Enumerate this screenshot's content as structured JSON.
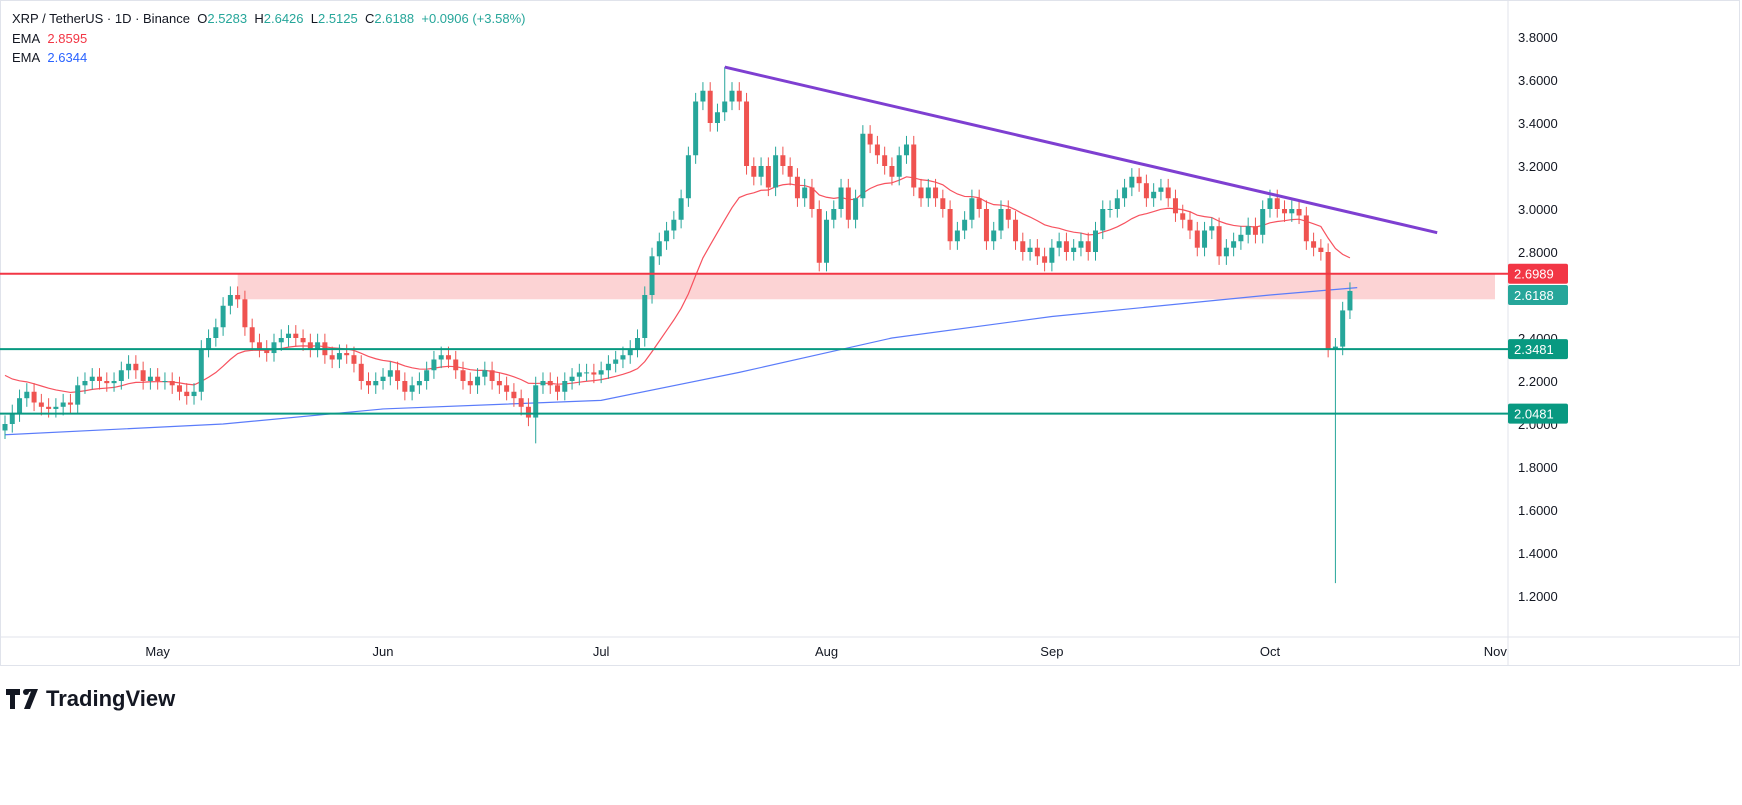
{
  "header": {
    "symbol": "XRP / TetherUS · 1D · Binance",
    "o_label": "O",
    "o": "2.5283",
    "h_label": "H",
    "h": "2.6426",
    "l_label": "L",
    "l": "2.5125",
    "c_label": "C",
    "c": "2.6188",
    "change": "+0.0906 (+3.58%)"
  },
  "ema_fast": {
    "label": "EMA",
    "value": "2.8595",
    "color": "#f7525f"
  },
  "ema_slow": {
    "label": "EMA",
    "value": "2.6344",
    "color": "#5b7cfa"
  },
  "brand": "TradingView",
  "chart_data": {
    "type": "candlestick",
    "start_date": "2025-04-10",
    "price_ticks": [
      "3.8000",
      "3.6000",
      "3.4000",
      "3.2000",
      "3.0000",
      "2.8000",
      "2.4000",
      "2.2000",
      "2.0000",
      "1.8000",
      "1.6000",
      "1.4000",
      "1.2000"
    ],
    "ylim": [
      1.0,
      3.9
    ],
    "time_labels": [
      {
        "label": "May",
        "date": "2025-05-01"
      },
      {
        "label": "Jun",
        "date": "2025-06-01"
      },
      {
        "label": "Jul",
        "date": "2025-07-01"
      },
      {
        "label": "Aug",
        "date": "2025-08-01"
      },
      {
        "label": "Sep",
        "date": "2025-09-01"
      },
      {
        "label": "Oct",
        "date": "2025-10-01"
      },
      {
        "label": "Nov",
        "date": "2025-11-01"
      }
    ],
    "closes": [
      2.0,
      2.05,
      2.12,
      2.15,
      2.1,
      2.08,
      2.07,
      2.08,
      2.1,
      2.09,
      2.18,
      2.2,
      2.22,
      2.2,
      2.19,
      2.2,
      2.25,
      2.28,
      2.25,
      2.2,
      2.22,
      2.2,
      2.2,
      2.18,
      2.15,
      2.13,
      2.15,
      2.35,
      2.4,
      2.45,
      2.55,
      2.6,
      2.58,
      2.45,
      2.38,
      2.35,
      2.33,
      2.38,
      2.4,
      2.42,
      2.4,
      2.38,
      2.35,
      2.38,
      2.32,
      2.3,
      2.33,
      2.32,
      2.28,
      2.2,
      2.18,
      2.2,
      2.22,
      2.25,
      2.2,
      2.15,
      2.18,
      2.2,
      2.25,
      2.3,
      2.32,
      2.3,
      2.25,
      2.2,
      2.18,
      2.22,
      2.25,
      2.2,
      2.18,
      2.15,
      2.12,
      2.08,
      2.03,
      2.18,
      2.2,
      2.18,
      2.15,
      2.2,
      2.22,
      2.24,
      2.24,
      2.23,
      2.25,
      2.28,
      2.3,
      2.32,
      2.35,
      2.4,
      2.6,
      2.78,
      2.85,
      2.9,
      2.95,
      3.05,
      3.25,
      3.5,
      3.55,
      3.4,
      3.45,
      3.5,
      3.55,
      3.5,
      3.2,
      3.15,
      3.2,
      3.1,
      3.25,
      3.2,
      3.15,
      3.05,
      3.1,
      3.0,
      2.75,
      2.95,
      3.0,
      3.1,
      2.95,
      3.05,
      3.35,
      3.3,
      3.25,
      3.2,
      3.15,
      3.25,
      3.3,
      3.1,
      3.05,
      3.1,
      3.05,
      3.0,
      2.85,
      2.9,
      2.95,
      3.05,
      3.0,
      2.85,
      2.9,
      3.0,
      2.95,
      2.85,
      2.8,
      2.82,
      2.78,
      2.75,
      2.82,
      2.85,
      2.8,
      2.82,
      2.85,
      2.8,
      2.9,
      3.0,
      3.0,
      3.05,
      3.1,
      3.15,
      3.12,
      3.05,
      3.08,
      3.1,
      3.05,
      2.98,
      2.95,
      2.9,
      2.82,
      2.9,
      2.92,
      2.78,
      2.82,
      2.85,
      2.88,
      2.92,
      2.88,
      3.0,
      3.05,
      3.0,
      2.98,
      3.0,
      2.97,
      2.85,
      2.82,
      2.8,
      2.35,
      2.36,
      2.5283,
      2.6188
    ],
    "extreme_lows": [
      {
        "date": "2025-10-10",
        "low": 1.26
      },
      {
        "date": "2025-06-22",
        "low": 1.91
      }
    ],
    "extreme_highs": [
      {
        "date": "2025-07-18",
        "high": 3.66
      }
    ],
    "ema_slow_points": [
      [
        "2025-04-10",
        1.95
      ],
      [
        "2025-05-10",
        2.0
      ],
      [
        "2025-06-01",
        2.07
      ],
      [
        "2025-07-01",
        2.11
      ],
      [
        "2025-07-20",
        2.24
      ],
      [
        "2025-08-10",
        2.4
      ],
      [
        "2025-09-01",
        2.5
      ],
      [
        "2025-10-01",
        2.6
      ],
      [
        "2025-10-13",
        2.6344
      ]
    ],
    "trendline": {
      "from": [
        "2025-07-18",
        3.66
      ],
      "to": [
        "2025-10-24",
        2.89
      ],
      "color": "#7e3fd1"
    },
    "resistance": {
      "value": "2.6989",
      "color": "#f23645"
    },
    "zone": {
      "top": 2.6989,
      "bottom": 2.58,
      "from": "2025-05-12",
      "color": "#fccbcd"
    },
    "last_price": {
      "value": "2.6188",
      "color": "#26a69a"
    },
    "supports": [
      {
        "value": "2.3481",
        "color": "#089981"
      },
      {
        "value": "2.0481",
        "color": "#089981"
      }
    ]
  }
}
